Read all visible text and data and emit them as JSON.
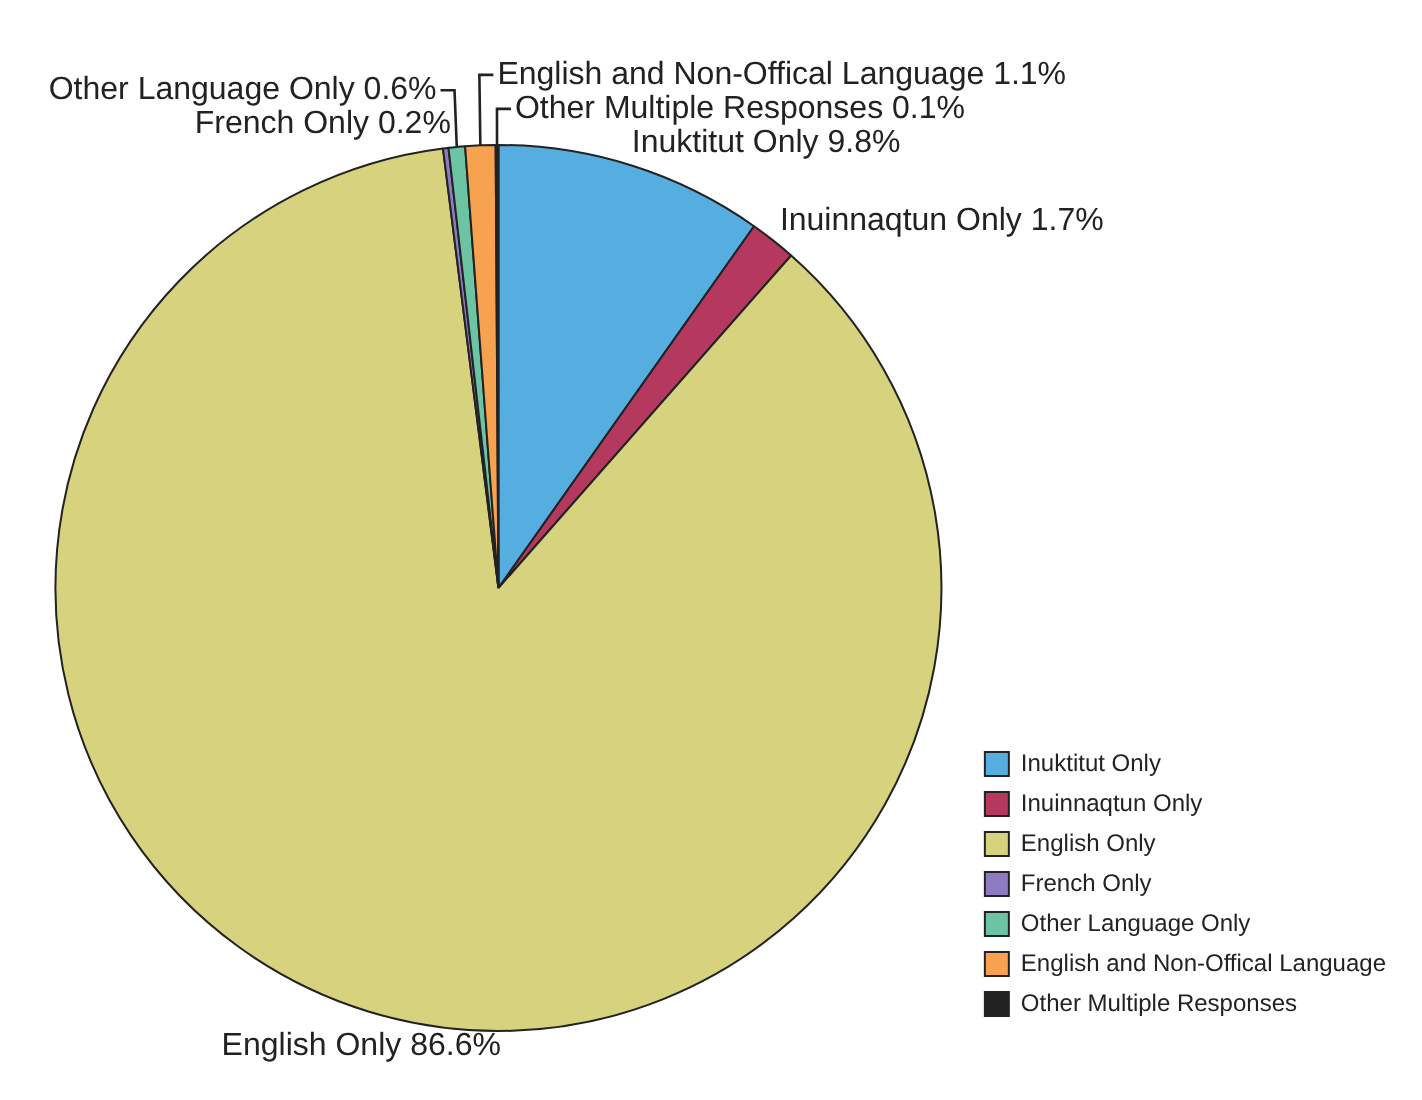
{
  "chart_data": {
    "type": "pie",
    "categories": [
      "Inuktitut Only",
      "Inuinnaqtun Only",
      "English Only",
      "French Only",
      "Other Language Only",
      "English and Non-Offical Language",
      "Other Multiple Responses"
    ],
    "values": [
      9.8,
      1.7,
      86.6,
      0.2,
      0.6,
      1.1,
      0.1
    ],
    "value_labels": [
      "9.8%",
      "1.7%",
      "86.6%",
      "0.2%",
      "0.6%",
      "1.1%",
      "0.1%"
    ],
    "colors": [
      "#56ade0",
      "#b5395f",
      "#d6d27e",
      "#8e7cc3",
      "#6cc4a4",
      "#f6a24e",
      "#222222"
    ],
    "legend": "bottom right"
  }
}
